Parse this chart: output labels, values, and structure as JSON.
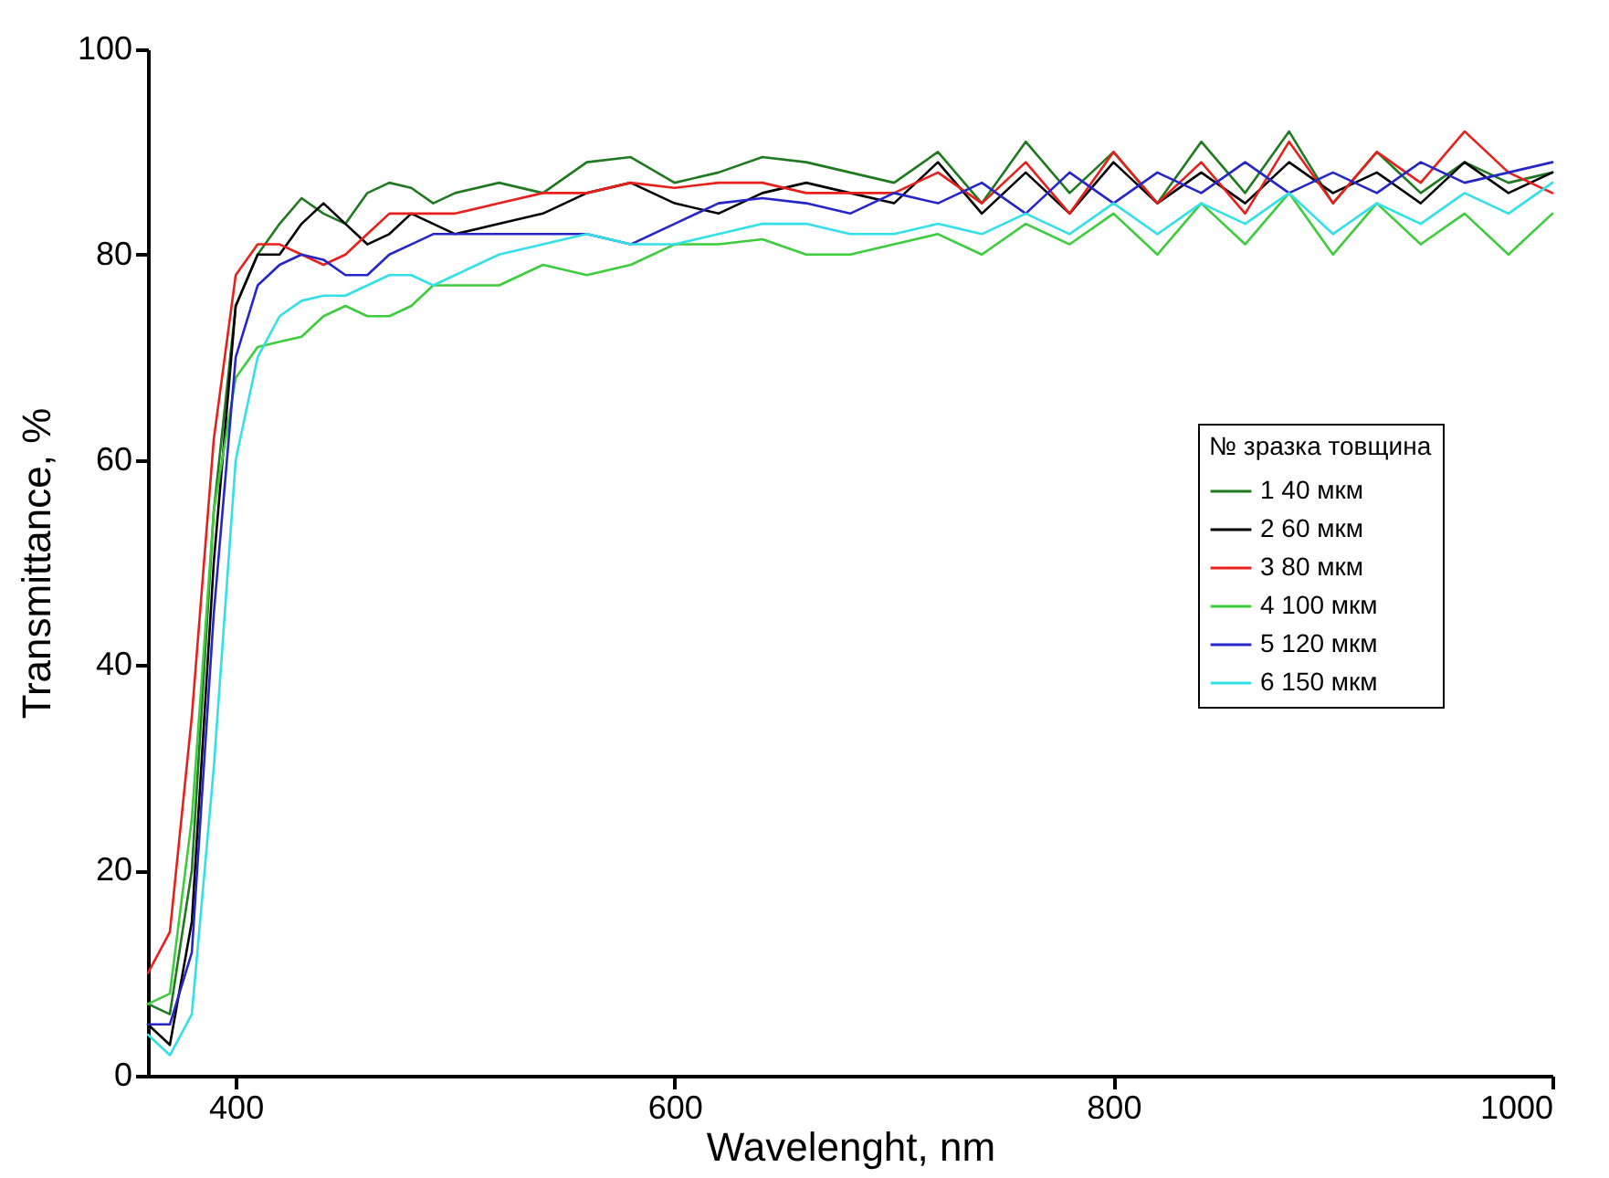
{
  "chart_data": {
    "type": "line",
    "xlabel": "Wavelenght, nm",
    "ylabel": "Transmittance, %",
    "legend_title": "№ зразка товщина",
    "legend": "right",
    "grid": false,
    "marker": "none",
    "line_style": "solid",
    "xlim": [
      360,
      1000
    ],
    "xticks": [
      400,
      600,
      800,
      1000
    ],
    "ylim": [
      0,
      100
    ],
    "yticks": [
      0,
      20,
      40,
      60,
      80,
      100
    ],
    "x": [
      360,
      370,
      380,
      390,
      400,
      410,
      420,
      430,
      440,
      450,
      460,
      470,
      480,
      490,
      500,
      520,
      540,
      560,
      580,
      600,
      620,
      640,
      660,
      680,
      700,
      720,
      740,
      760,
      780,
      800,
      820,
      840,
      860,
      880,
      900,
      920,
      940,
      960,
      980,
      1000
    ],
    "series": [
      {
        "name": "1 40 мкм",
        "color": "#1f7a1f",
        "values": [
          7,
          6,
          20,
          55,
          75,
          80,
          83,
          85.5,
          84,
          83,
          86,
          87,
          86.5,
          85,
          86,
          87,
          86,
          89,
          89.5,
          87,
          88,
          89.5,
          89,
          88,
          87,
          90,
          85,
          91,
          86,
          90,
          85,
          91,
          86,
          92,
          85,
          90,
          86,
          89,
          87,
          88
        ]
      },
      {
        "name": "2 60 мкм",
        "color": "#000000",
        "values": [
          5,
          3,
          15,
          50,
          75,
          80,
          80,
          83,
          85,
          83,
          81,
          82,
          84,
          83,
          82,
          83,
          84,
          86,
          87,
          85,
          84,
          86,
          87,
          86,
          85,
          89,
          84,
          88,
          84,
          89,
          85,
          88,
          85,
          89,
          86,
          88,
          85,
          89,
          86,
          88
        ]
      },
      {
        "name": "3 80 мкм",
        "color": "#e8201c",
        "values": [
          10,
          14,
          35,
          62,
          78,
          81,
          81,
          80,
          79,
          80,
          82,
          84,
          84,
          84,
          84,
          85,
          86,
          86,
          87,
          86.5,
          87,
          87,
          86,
          86,
          86,
          88,
          85,
          89,
          84,
          90,
          85,
          89,
          84,
          91,
          85,
          90,
          87,
          92,
          88,
          86
        ]
      },
      {
        "name": "4 100 мкм",
        "color": "#3ccc3c",
        "values": [
          7,
          8,
          25,
          55,
          68,
          71,
          71.5,
          72,
          74,
          75,
          74,
          74,
          75,
          77,
          77,
          77,
          79,
          78,
          79,
          81,
          81,
          81.5,
          80,
          80,
          81,
          82,
          80,
          83,
          81,
          84,
          80,
          85,
          81,
          86,
          80,
          85,
          81,
          84,
          80,
          84
        ]
      },
      {
        "name": "5 120 мкм",
        "color": "#2626c8",
        "values": [
          5,
          5,
          12,
          45,
          70,
          77,
          79,
          80,
          79.5,
          78,
          78,
          80,
          81,
          82,
          82,
          82,
          82,
          82,
          81,
          83,
          85,
          85.5,
          85,
          84,
          86,
          85,
          87,
          84,
          88,
          85,
          88,
          86,
          89,
          86,
          88,
          86,
          89,
          87,
          88,
          89
        ]
      },
      {
        "name": "6 150 мкм",
        "color": "#33e0e8",
        "values": [
          4,
          2,
          6,
          30,
          60,
          70,
          74,
          75.5,
          76,
          76,
          77,
          78,
          78,
          77,
          78,
          80,
          81,
          82,
          81,
          81,
          82,
          83,
          83,
          82,
          82,
          83,
          82,
          84,
          82,
          85,
          82,
          85,
          83,
          86,
          82,
          85,
          83,
          86,
          84,
          87
        ]
      }
    ]
  }
}
